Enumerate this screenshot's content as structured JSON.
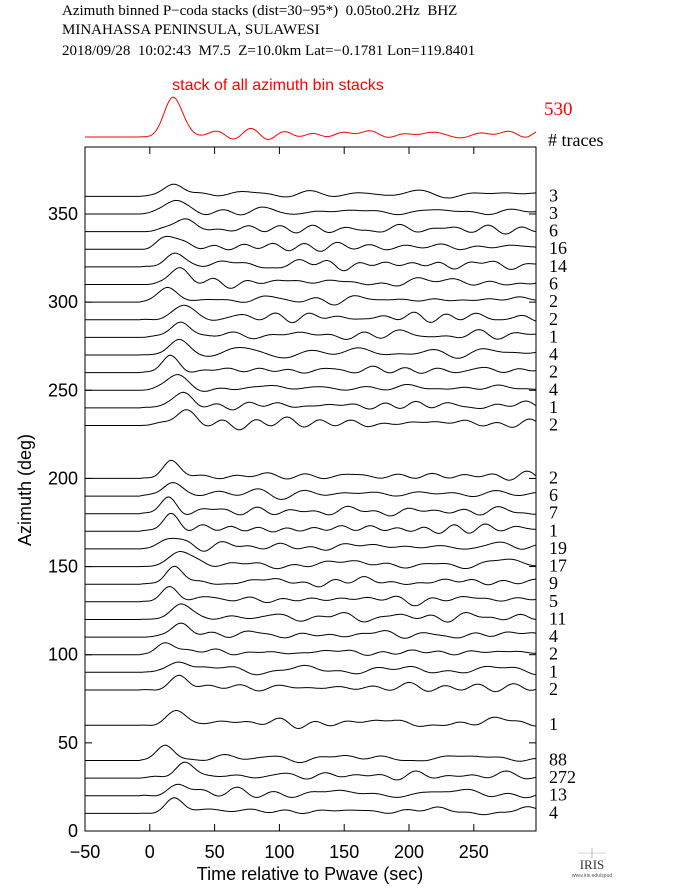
{
  "header": {
    "line1": "Azimuth binned P−coda stacks (dist=30−95*)  0.05to0.2Hz  BHZ",
    "line2": "MINAHASSA PENINSULA, SULAWESI",
    "line3": "2018/09/28  10:02:43  M7.5  Z=10.0km Lat=−0.1781 Lon=119.8401"
  },
  "chart_data": {
    "type": "line",
    "title": "",
    "xlabel": "Time relative to Pwave (sec)",
    "ylabel": "Azimuth (deg)",
    "xlim": [
      -50,
      298
    ],
    "ylim": [
      0,
      388
    ],
    "xticks": [
      "−50",
      "0",
      "50",
      "100",
      "150",
      "200",
      "250"
    ],
    "xtick_values": [
      -50,
      0,
      50,
      100,
      150,
      200,
      250
    ],
    "yticks": [
      "0",
      "50",
      "100",
      "150",
      "200",
      "250",
      "300",
      "350"
    ],
    "ytick_values": [
      0,
      50,
      100,
      150,
      200,
      250,
      300,
      350
    ],
    "grid": false,
    "trace_color": "#000000",
    "traces_header": "# traces",
    "stack": {
      "label": "stack of all azimuth bin stacks",
      "count": "530",
      "color": "#ff0000"
    },
    "bins": [
      {
        "azimuth": 360,
        "traces": "3"
      },
      {
        "azimuth": 350,
        "traces": "3"
      },
      {
        "azimuth": 340,
        "traces": "6"
      },
      {
        "azimuth": 330,
        "traces": "16"
      },
      {
        "azimuth": 320,
        "traces": "14"
      },
      {
        "azimuth": 310,
        "traces": "6"
      },
      {
        "azimuth": 300,
        "traces": "2"
      },
      {
        "azimuth": 290,
        "traces": "2"
      },
      {
        "azimuth": 280,
        "traces": "1"
      },
      {
        "azimuth": 270,
        "traces": "4"
      },
      {
        "azimuth": 260,
        "traces": "2"
      },
      {
        "azimuth": 250,
        "traces": "4"
      },
      {
        "azimuth": 240,
        "traces": "1"
      },
      {
        "azimuth": 230,
        "traces": "2"
      },
      {
        "azimuth": 200,
        "traces": "2"
      },
      {
        "azimuth": 190,
        "traces": "6"
      },
      {
        "azimuth": 180,
        "traces": "7"
      },
      {
        "azimuth": 170,
        "traces": "1"
      },
      {
        "azimuth": 160,
        "traces": "19"
      },
      {
        "azimuth": 150,
        "traces": "17"
      },
      {
        "azimuth": 140,
        "traces": "9"
      },
      {
        "azimuth": 130,
        "traces": "5"
      },
      {
        "azimuth": 120,
        "traces": "11"
      },
      {
        "azimuth": 110,
        "traces": "4"
      },
      {
        "azimuth": 100,
        "traces": "2"
      },
      {
        "azimuth": 90,
        "traces": "1"
      },
      {
        "azimuth": 80,
        "traces": "2"
      },
      {
        "azimuth": 60,
        "traces": "1"
      },
      {
        "azimuth": 40,
        "traces": "88"
      },
      {
        "azimuth": 30,
        "traces": "272"
      },
      {
        "azimuth": 20,
        "traces": "13"
      },
      {
        "azimuth": 10,
        "traces": "4"
      }
    ]
  },
  "logo": {
    "text": "IRIS",
    "url_text": "www.iris.edu/spud"
  }
}
